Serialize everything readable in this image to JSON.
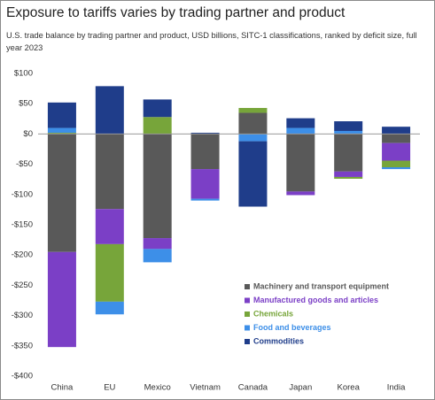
{
  "chart_data": {
    "type": "stacked_bar",
    "title": "Exposure to tariffs varies by trading partner and product",
    "subtitle": "U.S. trade balance by trading partner and product, USD billions, SITC-1 classifications, ranked by deficit size, full year 2023",
    "categories": [
      "China",
      "EU",
      "Mexico",
      "Vietnam",
      "Canada",
      "Japan",
      "Korea",
      "India"
    ],
    "series": [
      {
        "name": "Machinery and transport equipment",
        "color": "#595959",
        "values": [
          -195,
          -124,
          -172,
          -58,
          35,
          -95,
          -62,
          -15
        ]
      },
      {
        "name": "Manufactured goods and articles",
        "color": "#7b3fc6",
        "values": [
          -157,
          -58,
          -18,
          -49,
          0,
          -6,
          -9,
          -29
        ]
      },
      {
        "name": "Chemicals",
        "color": "#77a53a",
        "values": [
          2,
          -95,
          28,
          0,
          8,
          0,
          -3,
          -11
        ]
      },
      {
        "name": "Food and beverages",
        "color": "#3d8fe8",
        "values": [
          8,
          -21,
          -22,
          -3,
          -12,
          10,
          5,
          -3
        ]
      },
      {
        "name": "Commodities",
        "color": "#1f3d8a",
        "values": [
          42,
          79,
          29,
          2,
          -108,
          16,
          16,
          12
        ]
      }
    ],
    "ylim": [
      -400,
      100
    ],
    "yticks": [
      {
        "value": 100,
        "label": "$100"
      },
      {
        "value": 50,
        "label": "$50"
      },
      {
        "value": 0,
        "label": "$0"
      },
      {
        "value": -50,
        "label": "-$50"
      },
      {
        "value": -100,
        "label": "-$100"
      },
      {
        "value": -150,
        "label": "-$150"
      },
      {
        "value": -200,
        "label": "-$200"
      },
      {
        "value": -250,
        "label": "-$250"
      },
      {
        "value": -300,
        "label": "-$300"
      },
      {
        "value": -350,
        "label": "-$350"
      },
      {
        "value": -400,
        "label": "-$400"
      }
    ],
    "grid": false,
    "legend": "lower right"
  }
}
